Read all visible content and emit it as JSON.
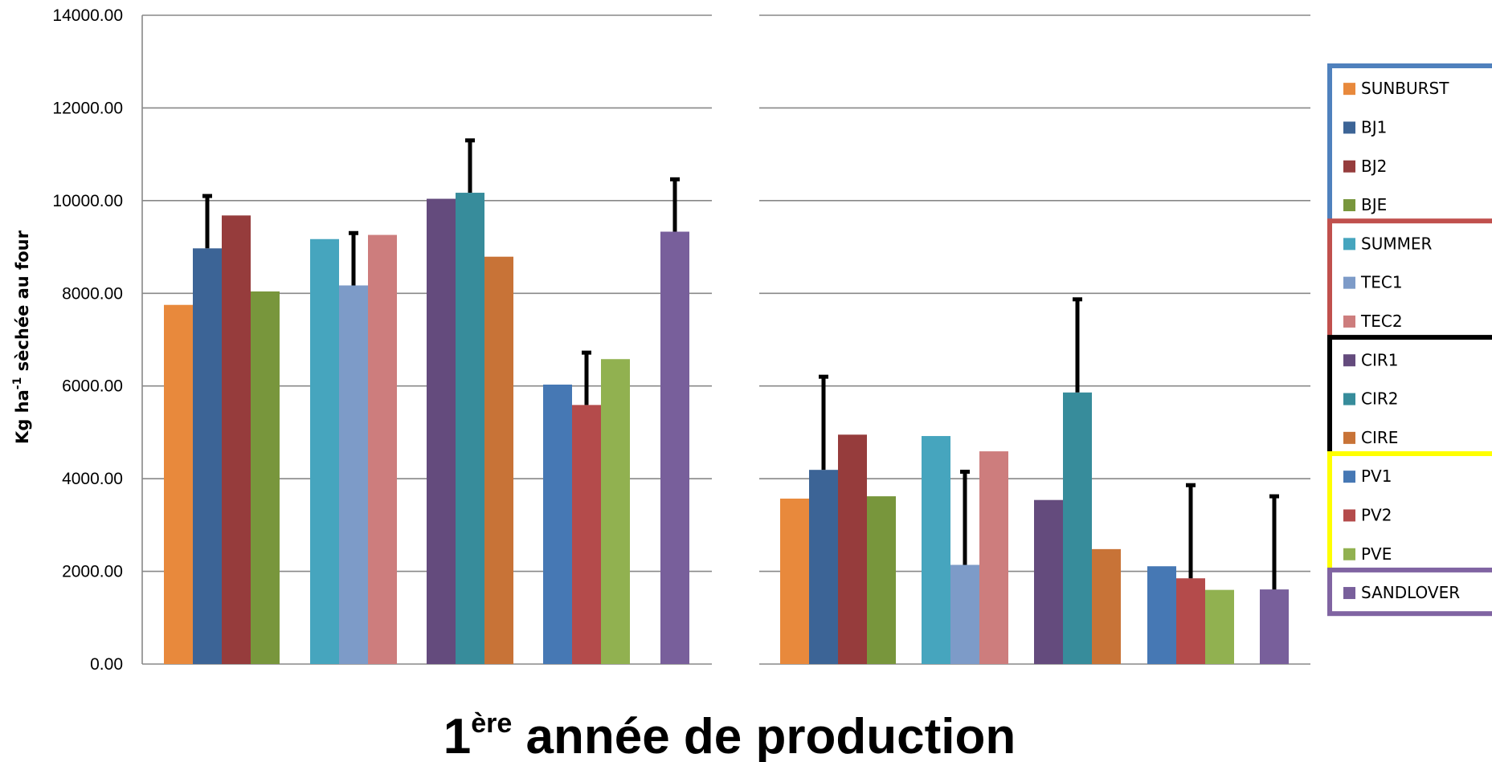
{
  "chart_data": {
    "type": "bar",
    "title": "1ère année de production",
    "title_main": "1",
    "title_sup": "ère",
    "title_rest": " année de production",
    "ylabel": "Kg ha-1 sèchée au four",
    "ylabel_pre": "Kg ha",
    "ylabel_sup": "-1",
    "ylabel_post": " sèchée au four",
    "ylim": [
      0,
      14000
    ],
    "yticks": [
      "0.00",
      "2000.00",
      "4000.00",
      "6000.00",
      "8000.00",
      "10000.00",
      "12000.00",
      "14000.00"
    ],
    "grid": true,
    "legend_position": "right",
    "legend_groups": [
      {
        "color": "#4F81BD",
        "items": [
          "SUNBURST",
          "BJ1",
          "BJ2",
          "BJE"
        ]
      },
      {
        "color": "#C0504D",
        "items": [
          "SUMMER",
          "TEC1",
          "TEC2"
        ]
      },
      {
        "color": "#000000",
        "items": [
          "CIR1",
          "CIR2",
          "CIRE"
        ]
      },
      {
        "color": "#FFFF00",
        "items": [
          "PV1",
          "PV2",
          "PVE"
        ]
      },
      {
        "color": "#8064A2",
        "items": [
          "SANDLOVER"
        ]
      }
    ],
    "series": [
      {
        "name": "SUNBURST",
        "color": "#E8893C"
      },
      {
        "name": "BJ1",
        "color": "#3C6496"
      },
      {
        "name": "BJ2",
        "color": "#963C3C"
      },
      {
        "name": "BJE",
        "color": "#78963C"
      },
      {
        "name": "SUMMER",
        "color": "#46A5BE"
      },
      {
        "name": "TEC1",
        "color": "#7D9BC8"
      },
      {
        "name": "TEC2",
        "color": "#CD7D7D"
      },
      {
        "name": "CIR1",
        "color": "#644B7D"
      },
      {
        "name": "CIR2",
        "color": "#378C9B"
      },
      {
        "name": "CIRE",
        "color": "#C87337"
      },
      {
        "name": "PV1",
        "color": "#4678B4"
      },
      {
        "name": "PV2",
        "color": "#B44B4B"
      },
      {
        "name": "PVE",
        "color": "#91B150"
      },
      {
        "name": "SANDLOVER",
        "color": "#785F9B"
      }
    ],
    "panels": [
      {
        "groups": [
          {
            "bars": [
              {
                "series": "SUNBURST",
                "value": 7750
              },
              {
                "series": "BJ1",
                "value": 8970,
                "error": 1130
              },
              {
                "series": "BJ2",
                "value": 9680
              },
              {
                "series": "BJE",
                "value": 8040
              }
            ]
          },
          {
            "bars": [
              {
                "series": "SUMMER",
                "value": 9170
              },
              {
                "series": "TEC1",
                "value": 8170,
                "error": 1130
              },
              {
                "series": "TEC2",
                "value": 9260
              }
            ]
          },
          {
            "bars": [
              {
                "series": "CIR1",
                "value": 10040
              },
              {
                "series": "CIR2",
                "value": 10170,
                "error": 1130
              },
              {
                "series": "CIRE",
                "value": 8790
              }
            ]
          },
          {
            "bars": [
              {
                "series": "PV1",
                "value": 6030
              },
              {
                "series": "PV2",
                "value": 5590,
                "error": 1130
              },
              {
                "series": "PVE",
                "value": 6580
              }
            ]
          },
          {
            "bars": [
              {
                "series": "SANDLOVER",
                "value": 9330,
                "error": 1130
              }
            ]
          }
        ]
      },
      {
        "groups": [
          {
            "bars": [
              {
                "series": "SUNBURST",
                "value": 3570
              },
              {
                "series": "BJ1",
                "value": 4190,
                "error": 2010
              },
              {
                "series": "BJ2",
                "value": 4950
              },
              {
                "series": "BJE",
                "value": 3620
              }
            ]
          },
          {
            "bars": [
              {
                "series": "SUMMER",
                "value": 4920
              },
              {
                "series": "TEC1",
                "value": 2140,
                "error": 2010
              },
              {
                "series": "TEC2",
                "value": 4590
              }
            ]
          },
          {
            "bars": [
              {
                "series": "CIR1",
                "value": 3540
              },
              {
                "series": "CIR2",
                "value": 5860,
                "error": 2010
              },
              {
                "series": "CIRE",
                "value": 2480
              }
            ]
          },
          {
            "bars": [
              {
                "series": "PV1",
                "value": 2110
              },
              {
                "series": "PV2",
                "value": 1850,
                "error": 2010
              },
              {
                "series": "PVE",
                "value": 1600
              }
            ]
          },
          {
            "bars": [
              {
                "series": "SANDLOVER",
                "value": 1610,
                "error": 2010
              }
            ]
          }
        ]
      }
    ]
  }
}
